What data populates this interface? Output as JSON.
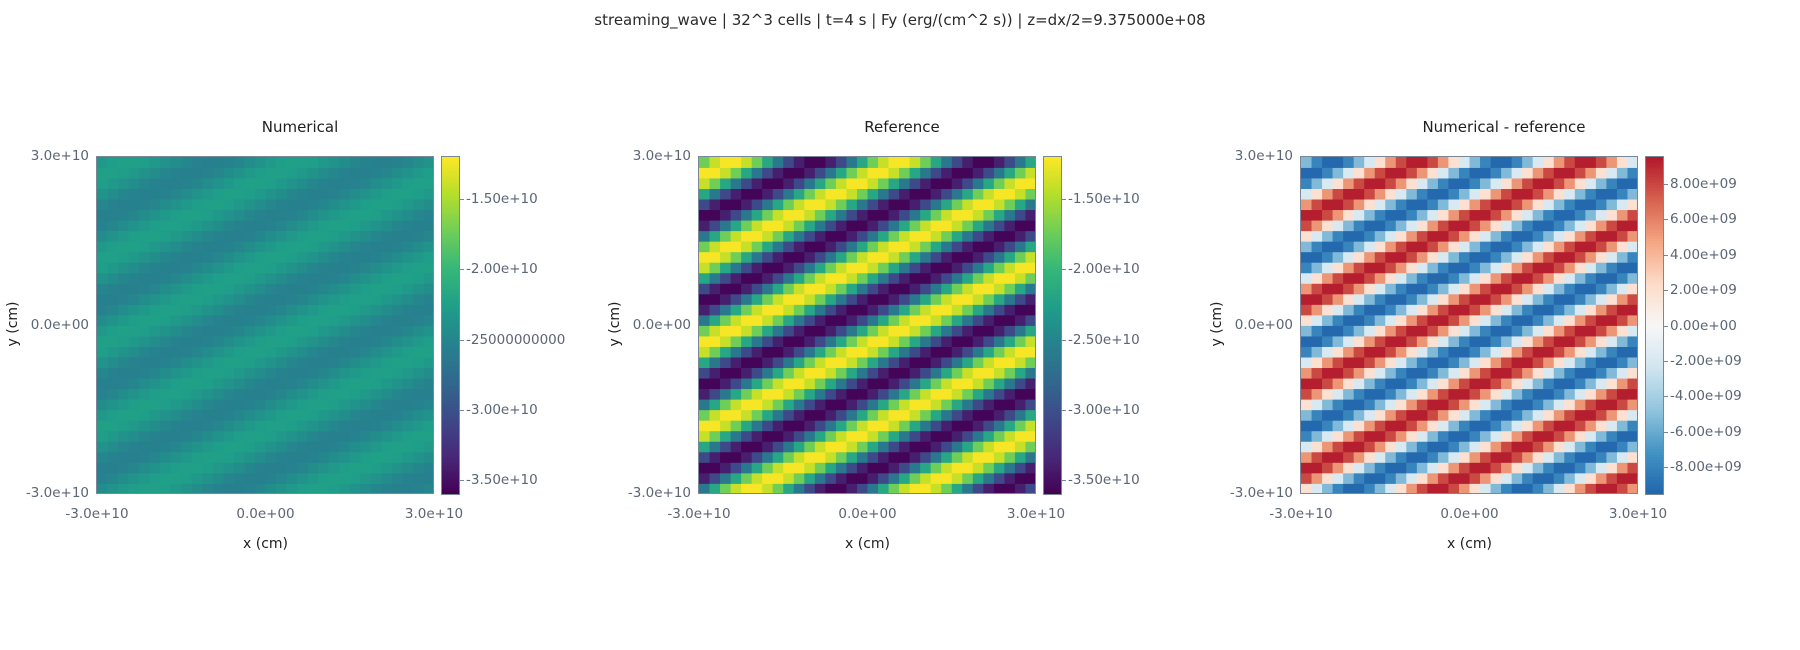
{
  "suptitle": "streaming_wave | 32^3 cells | t=4 s | Fy (erg/(cm^2 s)) | z=dx/2=9.375000e+08",
  "chart_data": [
    {
      "type": "heatmap",
      "title": "Numerical",
      "xlabel": "x (cm)",
      "ylabel": "y (cm)",
      "grid": false,
      "nx": 32,
      "ny": 32,
      "xlim": [
        -30000000000.0,
        30000000000.0
      ],
      "ylim": [
        -30000000000.0,
        30000000000.0
      ],
      "xticks": [
        "-3.0e+10",
        "0.0e+00",
        "3.0e+10"
      ],
      "yticks": [
        "3.0e+10",
        "0.0e+00",
        "-3.0e+10"
      ],
      "colormap": "viridis",
      "vmin": -36000000000.0,
      "vmax": -12000000000.0,
      "cbar_ticks": [
        {
          "value": -15000000000.0,
          "label": "-1.50e+10"
        },
        {
          "value": -20000000000.0,
          "label": "-2.00e+10"
        },
        {
          "value": -25000000000.0,
          "label": -25000000000.0
        },
        {
          "value": -30000000000.0,
          "label": "-3.00e+10"
        },
        {
          "value": -35000000000.0,
          "label": "-3.50e+10"
        }
      ],
      "field": {
        "mean": -24000000000.0,
        "amplitude": 1600000000.0,
        "kx": 2,
        "ky": 4,
        "phase": 0.0
      }
    },
    {
      "type": "heatmap",
      "title": "Reference",
      "xlabel": "x (cm)",
      "ylabel": "y (cm)",
      "grid": false,
      "nx": 32,
      "ny": 32,
      "xlim": [
        -30000000000.0,
        30000000000.0
      ],
      "ylim": [
        -30000000000.0,
        30000000000.0
      ],
      "xticks": [
        "-3.0e+10",
        "0.0e+00",
        "3.0e+10"
      ],
      "yticks": [
        "3.0e+10",
        "0.0e+00",
        "-3.0e+10"
      ],
      "colormap": "viridis",
      "vmin": -36000000000.0,
      "vmax": -12000000000.0,
      "cbar_ticks": [
        {
          "value": -15000000000.0,
          "label": "-1.50e+10"
        },
        {
          "value": -20000000000.0,
          "label": "-2.00e+10"
        },
        {
          "value": -25000000000.0,
          "label": "-2.50e+10"
        },
        {
          "value": -30000000000.0,
          "label": "-3.00e+10"
        },
        {
          "value": -35000000000.0,
          "label": "-3.50e+10"
        }
      ],
      "field": {
        "mean": -24000000000.0,
        "amplitude": 12000000000.0,
        "kx": 2,
        "ky": 4,
        "phase": 0.0
      }
    },
    {
      "type": "heatmap",
      "title": "Numerical - reference",
      "xlabel": "x (cm)",
      "ylabel": "y (cm)",
      "grid": false,
      "nx": 32,
      "ny": 32,
      "xlim": [
        -30000000000.0,
        30000000000.0
      ],
      "ylim": [
        -30000000000.0,
        30000000000.0
      ],
      "xticks": [
        "-3.0e+10",
        "0.0e+00",
        "3.0e+10"
      ],
      "yticks": [
        "3.0e+10",
        "0.0e+00",
        "-3.0e+10"
      ],
      "colormap": "RdBu_r",
      "vmin": -9500000000.0,
      "vmax": 9500000000.0,
      "cbar_ticks": [
        {
          "value": 8000000000.0,
          "label": "8.00e+09"
        },
        {
          "value": 6000000000.0,
          "label": "6.00e+09"
        },
        {
          "value": 4000000000.0,
          "label": "4.00e+09"
        },
        {
          "value": 2000000000.0,
          "label": "2.00e+09"
        },
        {
          "value": 0.0,
          "label": "0.00e+00"
        },
        {
          "value": -2000000000.0,
          "label": "-2.00e+09"
        },
        {
          "value": -4000000000.0,
          "label": "-4.00e+09"
        },
        {
          "value": -6000000000.0,
          "label": "-6.00e+09"
        },
        {
          "value": -8000000000.0,
          "label": "-8.00e+09"
        }
      ],
      "field": {
        "mean": 0.0,
        "amplitude": 9500000000.0,
        "kx": 2,
        "ky": 4,
        "phase": 3.14159
      }
    }
  ]
}
